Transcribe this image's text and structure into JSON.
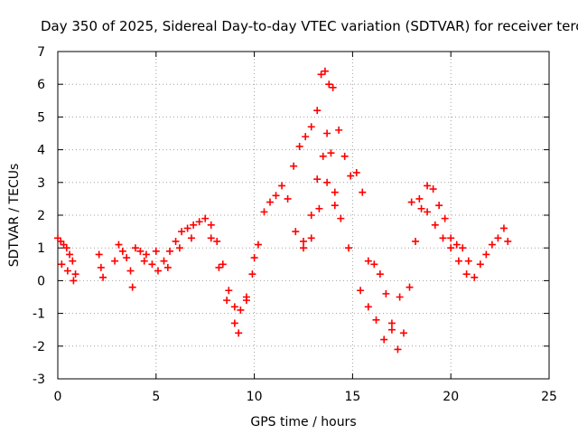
{
  "chart_data": {
    "type": "scatter",
    "title": "Day 350 of 2025, Sidereal Day-to-day VTEC variation (SDTVAR) for receiver terc",
    "xlabel": "GPS time / hours",
    "ylabel": "SDTVAR / TECUs",
    "xlim": [
      0,
      25
    ],
    "ylim": [
      -3,
      7
    ],
    "xticks": [
      0,
      5,
      10,
      15,
      20,
      25
    ],
    "yticks": [
      -3,
      -2,
      -1,
      0,
      1,
      2,
      3,
      4,
      5,
      6,
      7
    ],
    "grid": true,
    "marker": "+",
    "series": [
      {
        "name": "SDTVAR",
        "color": "#ff0000",
        "x": [
          0.0,
          0.15,
          0.3,
          0.45,
          0.6,
          0.75,
          0.9,
          2.1,
          2.2,
          2.3,
          2.9,
          3.1,
          3.3,
          3.5,
          3.7,
          3.8,
          3.95,
          4.2,
          4.5,
          4.8,
          5.1,
          5.4,
          5.7,
          6.0,
          6.3,
          6.6,
          6.9,
          7.2,
          7.5,
          7.8,
          8.1,
          8.4,
          8.7,
          9.0,
          9.3,
          9.6,
          9.9,
          10.2,
          10.5,
          10.8,
          11.1,
          11.4,
          11.7,
          12.0,
          12.3,
          12.6,
          12.9,
          13.2,
          13.4,
          13.6,
          13.8,
          14.0,
          14.3,
          14.6,
          14.9,
          15.2,
          15.5,
          15.8,
          16.1,
          16.4,
          16.7,
          17.0,
          17.3,
          17.6,
          17.9,
          18.2,
          18.5,
          18.8,
          19.1,
          19.4,
          19.7,
          20.0,
          20.3,
          20.6,
          20.9,
          21.2,
          21.5,
          21.8,
          22.1,
          22.4,
          22.7,
          22.9,
          7.8,
          8.2,
          8.6,
          9.0,
          9.2,
          9.6,
          10.0,
          12.5,
          12.9,
          13.2,
          13.5,
          13.7,
          13.9,
          14.1,
          14.4,
          14.8,
          12.1,
          12.5,
          12.9,
          13.3,
          13.7,
          14.1,
          15.4,
          15.8,
          16.2,
          16.6,
          17.0,
          17.4,
          18.0,
          18.4,
          18.8,
          19.2,
          19.6,
          20.0,
          20.4,
          20.8,
          4.4,
          5.0,
          5.6,
          6.2,
          6.8,
          0.2,
          0.5,
          0.8
        ],
        "y": [
          1.3,
          1.2,
          1.1,
          1.0,
          0.8,
          0.6,
          0.2,
          0.8,
          0.4,
          0.1,
          0.6,
          1.1,
          0.9,
          0.7,
          0.3,
          -0.2,
          1.0,
          0.9,
          0.8,
          0.5,
          0.3,
          0.6,
          0.9,
          1.2,
          1.5,
          1.6,
          1.7,
          1.8,
          1.9,
          1.7,
          1.2,
          0.5,
          -0.3,
          -0.8,
          -0.9,
          -0.6,
          0.2,
          1.1,
          2.1,
          2.4,
          2.6,
          2.9,
          2.5,
          3.5,
          4.1,
          4.4,
          4.7,
          5.2,
          6.3,
          6.4,
          6.0,
          5.9,
          4.6,
          3.8,
          3.2,
          3.3,
          2.7,
          0.6,
          0.5,
          0.2,
          -0.4,
          -1.3,
          -2.1,
          -1.6,
          -0.2,
          1.2,
          2.2,
          2.9,
          2.8,
          2.3,
          1.9,
          1.3,
          1.1,
          1.0,
          0.6,
          0.1,
          0.5,
          0.8,
          1.1,
          1.3,
          1.6,
          1.2,
          1.3,
          0.4,
          -0.6,
          -1.3,
          -1.6,
          -0.5,
          0.7,
          1.2,
          2.0,
          3.1,
          3.8,
          4.5,
          3.9,
          2.7,
          1.9,
          1.0,
          1.5,
          1.0,
          1.3,
          2.2,
          3.0,
          2.3,
          -0.3,
          -0.8,
          -1.2,
          -1.8,
          -1.5,
          -0.5,
          2.4,
          2.5,
          2.1,
          1.7,
          1.3,
          1.0,
          0.6,
          0.2,
          0.6,
          0.9,
          0.4,
          1.0,
          1.3,
          0.5,
          0.3,
          0.0
        ]
      }
    ]
  }
}
